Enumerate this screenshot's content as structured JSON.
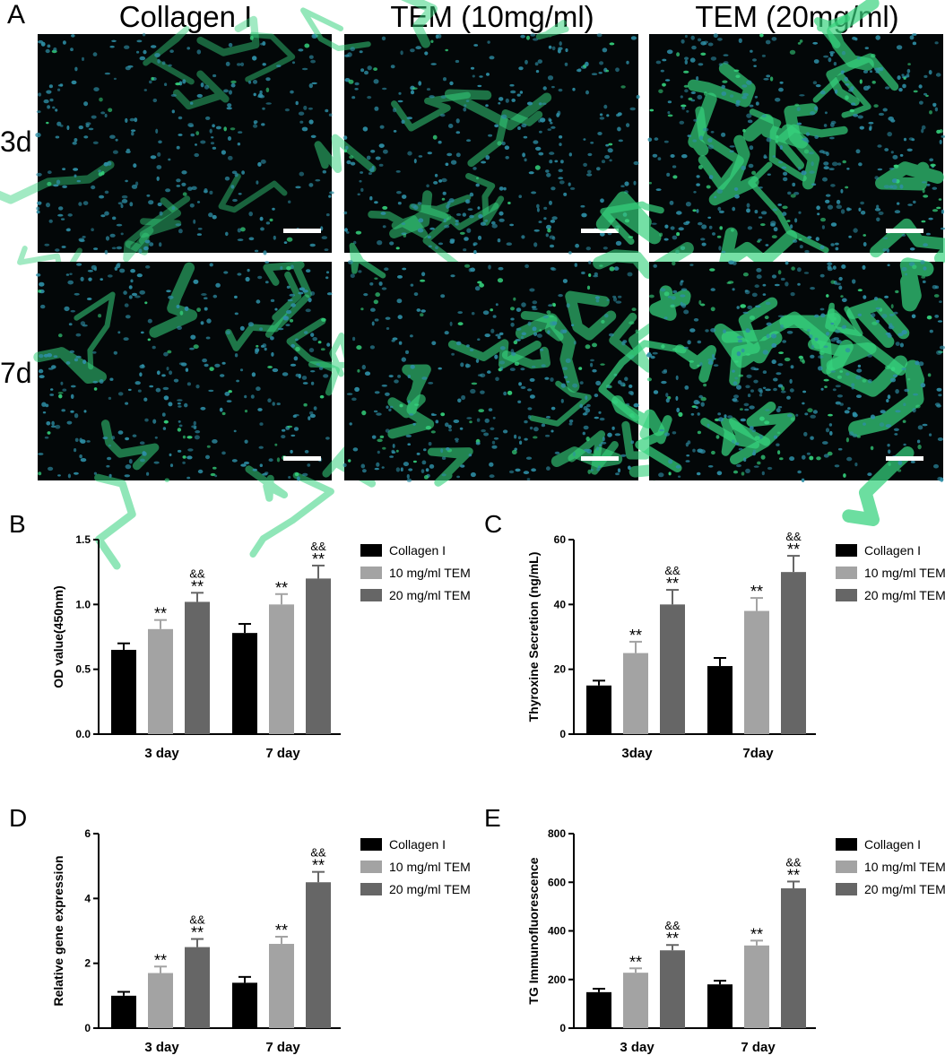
{
  "panel_a": {
    "letter": "A",
    "columns": [
      "Collagen I",
      "TEM (10mg/ml)",
      "TEM (20mg/ml)"
    ],
    "rows": [
      "3d",
      "7d"
    ],
    "images": [
      {
        "row": 0,
        "col": 0,
        "density": 0.25,
        "color_nuclei": "#2e8fa6",
        "color_green": "#35d27d"
      },
      {
        "row": 0,
        "col": 1,
        "density": 0.4,
        "color_nuclei": "#2e8fa6",
        "color_green": "#35d27d"
      },
      {
        "row": 0,
        "col": 2,
        "density": 0.75,
        "color_nuclei": "#2e8fa6",
        "color_green": "#35d27d"
      },
      {
        "row": 1,
        "col": 0,
        "density": 0.45,
        "color_nuclei": "#2e8fa6",
        "color_green": "#35d27d"
      },
      {
        "row": 1,
        "col": 1,
        "density": 0.6,
        "color_nuclei": "#2e8fa6",
        "color_green": "#35d27d"
      },
      {
        "row": 1,
        "col": 2,
        "density": 0.85,
        "color_nuclei": "#2e8fa6",
        "color_green": "#35d27d"
      }
    ]
  },
  "chart_data": [
    {
      "id": "B",
      "letter": "B",
      "type": "bar",
      "categories": [
        "3 day",
        "7 day"
      ],
      "series": [
        {
          "name": "Collagen I",
          "color": "#000000",
          "values": [
            0.65,
            0.78
          ],
          "errors": [
            0.05,
            0.07
          ],
          "annotations": [
            "",
            ""
          ]
        },
        {
          "name": "10 mg/ml TEM",
          "color": "#a3a3a3",
          "values": [
            0.81,
            1.0
          ],
          "errors": [
            0.07,
            0.08
          ],
          "annotations": [
            "**",
            "**"
          ]
        },
        {
          "name": "20 mg/ml TEM",
          "color": "#666666",
          "values": [
            1.02,
            1.2
          ],
          "errors": [
            0.07,
            0.1
          ],
          "annotations": [
            "**\n&&",
            "**\n&&"
          ]
        }
      ],
      "ylabel": "OD value(450nm)",
      "ylim": [
        0,
        1.5
      ],
      "yticks": [
        0.0,
        0.5,
        1.0,
        1.5
      ],
      "ytick_labels": [
        "0.0",
        "0.5",
        "1.0",
        "1.5"
      ],
      "legend": "right"
    },
    {
      "id": "C",
      "letter": "C",
      "type": "bar",
      "categories": [
        "3day",
        "7day"
      ],
      "series": [
        {
          "name": "Collagen I",
          "color": "#000000",
          "values": [
            15,
            21
          ],
          "errors": [
            1.5,
            2.5
          ],
          "annotations": [
            "",
            ""
          ]
        },
        {
          "name": "10 mg/ml TEM",
          "color": "#a3a3a3",
          "values": [
            25,
            38
          ],
          "errors": [
            3.5,
            4
          ],
          "annotations": [
            "**",
            "**"
          ]
        },
        {
          "name": "20 mg/ml TEM",
          "color": "#666666",
          "values": [
            40,
            50
          ],
          "errors": [
            4.5,
            5
          ],
          "annotations": [
            "**\n&&",
            "**\n&&"
          ]
        }
      ],
      "ylabel": "Thyroxine Secretion (ng/mL)",
      "ylim": [
        0,
        60
      ],
      "yticks": [
        0,
        20,
        40,
        60
      ],
      "ytick_labels": [
        "0",
        "20",
        "40",
        "60"
      ],
      "legend": "right"
    },
    {
      "id": "D",
      "letter": "D",
      "type": "bar",
      "categories": [
        "3 day",
        "7 day"
      ],
      "series": [
        {
          "name": "Collagen I",
          "color": "#000000",
          "values": [
            1.0,
            1.4
          ],
          "errors": [
            0.12,
            0.18
          ],
          "annotations": [
            "",
            ""
          ]
        },
        {
          "name": "10 mg/ml TEM",
          "color": "#a3a3a3",
          "values": [
            1.7,
            2.6
          ],
          "errors": [
            0.2,
            0.22
          ],
          "annotations": [
            "**",
            "**"
          ]
        },
        {
          "name": "20 mg/ml TEM",
          "color": "#666666",
          "values": [
            2.5,
            4.5
          ],
          "errors": [
            0.25,
            0.32
          ],
          "annotations": [
            "**\n&&",
            "**\n&&"
          ]
        }
      ],
      "ylabel": "Relative gene expression",
      "ylim": [
        0,
        6
      ],
      "yticks": [
        0,
        2,
        4,
        6
      ],
      "ytick_labels": [
        "0",
        "2",
        "4",
        "6"
      ],
      "legend": "right"
    },
    {
      "id": "E",
      "letter": "E",
      "type": "bar",
      "categories": [
        "3 day",
        "7 day"
      ],
      "series": [
        {
          "name": "Collagen I",
          "color": "#000000",
          "values": [
            148,
            180
          ],
          "errors": [
            14,
            15
          ],
          "annotations": [
            "",
            ""
          ]
        },
        {
          "name": "10 mg/ml TEM",
          "color": "#a3a3a3",
          "values": [
            228,
            340
          ],
          "errors": [
            18,
            20
          ],
          "annotations": [
            "**",
            "**"
          ]
        },
        {
          "name": "20 mg/ml TEM",
          "color": "#666666",
          "values": [
            320,
            575
          ],
          "errors": [
            22,
            28
          ],
          "annotations": [
            "**\n&&",
            "**\n&&"
          ]
        }
      ],
      "ylabel": "TG Immunofluorescence",
      "ylim": [
        0,
        800
      ],
      "yticks": [
        0,
        200,
        400,
        600,
        800
      ],
      "ytick_labels": [
        "0",
        "200",
        "400",
        "600",
        "800"
      ],
      "legend": "right"
    }
  ]
}
